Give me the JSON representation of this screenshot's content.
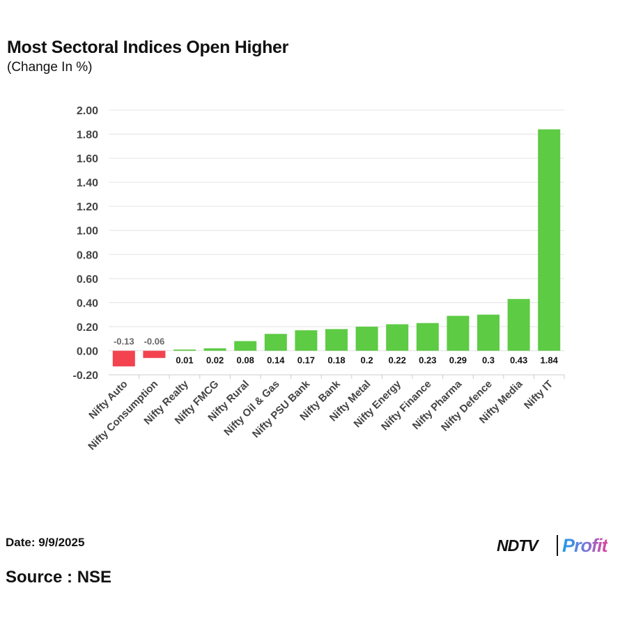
{
  "header": {
    "title": "Most Sectoral Indices Open Higher",
    "subtitle": "(Change In %)"
  },
  "footer": {
    "date": "Date: 9/9/2025",
    "source": "Source : NSE"
  },
  "logo": {
    "ndtv": "NDTV",
    "profit": "Profit"
  },
  "colors": {
    "positive": "#5dcb44",
    "negative": "#f2434f",
    "grid": "#e3e3e3",
    "axis_text": "#444444"
  },
  "chart_data": {
    "type": "bar",
    "title": "Most Sectoral Indices Open Higher",
    "subtitle": "(Change In %)",
    "xlabel": "",
    "ylabel": "",
    "ylim": [
      -0.2,
      2.0
    ],
    "yticks": [
      -0.2,
      0.0,
      0.2,
      0.4,
      0.6,
      0.8,
      1.0,
      1.2,
      1.4,
      1.6,
      1.8,
      2.0
    ],
    "ytick_labels": [
      "-0.20",
      "0.00",
      "0.20",
      "0.40",
      "0.60",
      "0.80",
      "1.00",
      "1.20",
      "1.40",
      "1.60",
      "1.80",
      "2.00"
    ],
    "grid": true,
    "categories": [
      "Nifty Auto",
      "Nifty Consumption",
      "Nifty Realty",
      "Nifty FMCG",
      "Nifty Rural",
      "Nifty Oil & Gas",
      "Nifty PSU Bank",
      "Nifty Bank",
      "Nifty Metal",
      "Nifty Energy",
      "Nifty Finance",
      "Nifty Pharma",
      "Nifty Defence",
      "Nifty Media",
      "Nifty IT"
    ],
    "values": [
      -0.13,
      -0.06,
      0.01,
      0.02,
      0.08,
      0.14,
      0.17,
      0.18,
      0.2,
      0.22,
      0.23,
      0.29,
      0.3,
      0.43,
      1.84
    ],
    "value_labels": [
      "-0.13",
      "-0.06",
      "0.01",
      "0.02",
      "0.08",
      "0.14",
      "0.17",
      "0.18",
      "0.2",
      "0.22",
      "0.23",
      "0.29",
      "0.3",
      "0.43",
      "1.84"
    ]
  }
}
